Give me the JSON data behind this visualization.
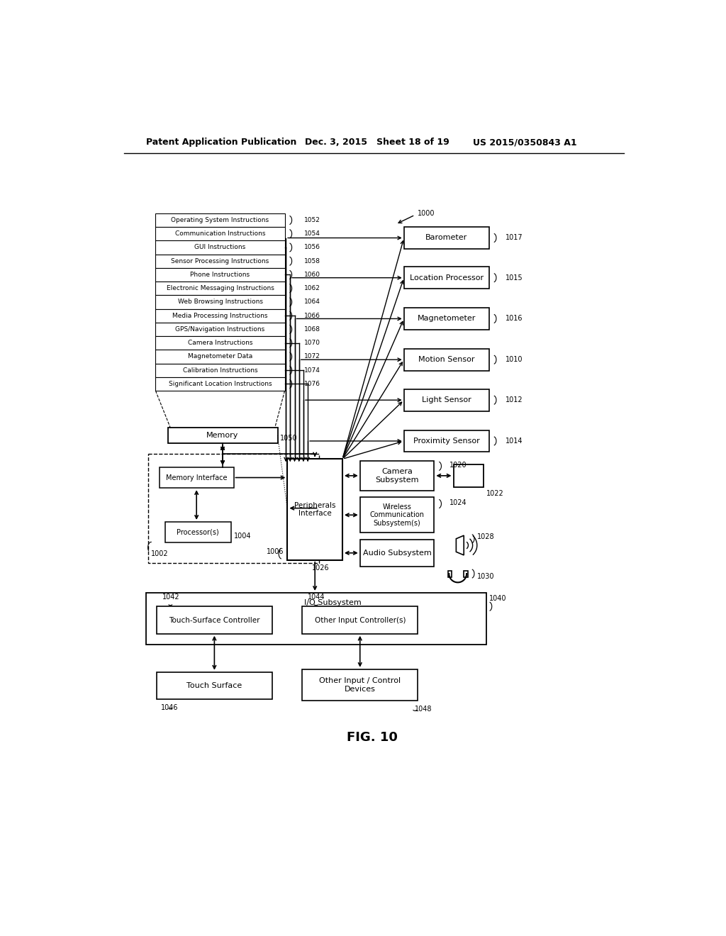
{
  "header_left": "Patent Application Publication",
  "header_mid": "Dec. 3, 2015   Sheet 18 of 19",
  "header_right": "US 2015/0350843 A1",
  "figure_label": "FIG. 10",
  "bg_color": "#ffffff",
  "memory_items": [
    "Operating System Instructions",
    "Communication Instructions",
    "GUI Instructions",
    "Sensor Processing Instructions",
    "Phone Instructions",
    "Electronic Messaging Instructions",
    "Web Browsing Instructions",
    "Media Processing Instructions",
    "GPS/Navigation Instructions",
    "Camera Instructions",
    "Magnetometer Data",
    "Calibration Instructions",
    "Significant Location Instructions"
  ],
  "memory_labels": [
    "1052",
    "1054",
    "1056",
    "1058",
    "1060",
    "1062",
    "1064",
    "1066",
    "1068",
    "1070",
    "1072",
    "1074",
    "1076"
  ],
  "right_boxes": [
    "Barometer",
    "Location Processor",
    "Magnetometer",
    "Motion Sensor",
    "Light Sensor",
    "Proximity Sensor"
  ],
  "right_labels": [
    "1017",
    "1015",
    "1016",
    "1010",
    "1012",
    "1014"
  ],
  "center_box": "Peripherals\nInterface",
  "center_label": "1006",
  "memory_box": "Memory",
  "memory_box_label": "1050",
  "memory_iface": "Memory Interface",
  "processor": "Processor(s)",
  "processor_label": "1004",
  "device_label": "1002",
  "io_label": "1040",
  "io_subsystem": "I/O Subsystem",
  "touch_ctrl": "Touch-Surface Controller",
  "touch_ctrl_label": "1042",
  "other_ctrl": "Other Input Controller(s)",
  "other_ctrl_label": "1044",
  "touch_surface": "Touch Surface",
  "touch_surface_label": "1046",
  "other_devices": "Other Input / Control\nDevices",
  "other_devices_label": "1048",
  "camera_subsystem": "Camera\nSubsystem",
  "camera_label": "1020",
  "camera_icon_label": "1022",
  "wireless": "Wireless\nCommunication\nSubsystem(s)",
  "wireless_label": "1024",
  "audio": "Audio Subsystem",
  "audio_label": "1028",
  "audio_headphone_label": "1030",
  "top_label": "1000",
  "io_down_label": "1026"
}
